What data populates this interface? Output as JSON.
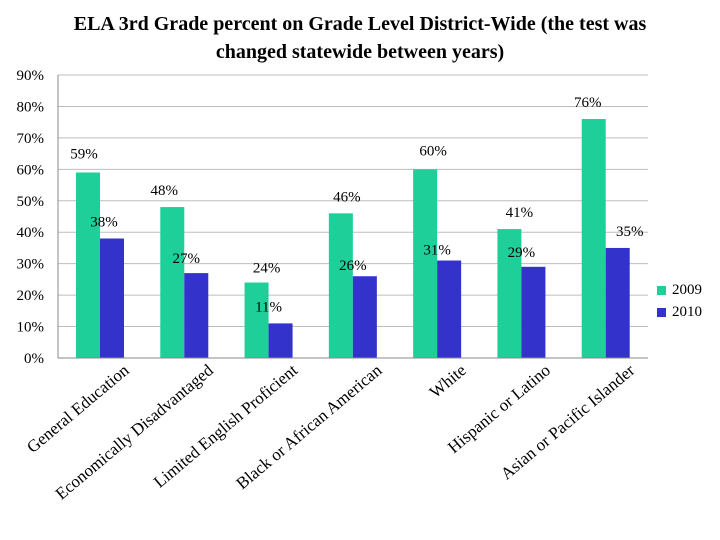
{
  "chart_data": {
    "type": "bar",
    "title": "ELA 3rd Grade percent on Grade Level District-Wide (the test was changed statewide between years)",
    "categories": [
      "General Education",
      "Economically Disadvantaged",
      "Limited English Proficient",
      "Black or African American",
      "White",
      "Hispanic or Latino",
      "Asian or Pacific Islander"
    ],
    "series": [
      {
        "name": "2009",
        "color": "#1ecf9a",
        "values": [
          59,
          48,
          24,
          46,
          60,
          41,
          76
        ],
        "labels": [
          "59%",
          "48%",
          "24%",
          "46%",
          "60%",
          "41%",
          "76%"
        ]
      },
      {
        "name": "2010",
        "color": "#3333cc",
        "values": [
          38,
          27,
          11,
          26,
          31,
          29,
          35
        ],
        "labels": [
          "38%",
          "27%",
          "11%",
          "26%",
          "31%",
          "29%",
          "35%"
        ]
      }
    ],
    "ylim": [
      0,
      90
    ],
    "yticks": [
      "0%",
      "10%",
      "20%",
      "30%",
      "40%",
      "50%",
      "60%",
      "70%",
      "80%",
      "90%"
    ],
    "xlabel": "",
    "ylabel": "",
    "grid": true,
    "legend_position": "right"
  }
}
